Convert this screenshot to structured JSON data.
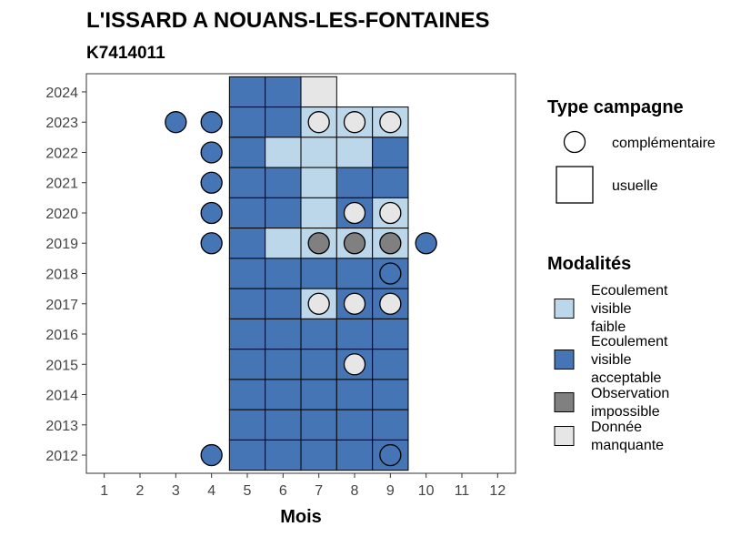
{
  "chart_data": {
    "type": "heatmap",
    "title": "L'ISSARD A NOUANS-LES-FONTAINES",
    "subtitle": "K7414011",
    "xlabel": "Mois",
    "ylabel": "",
    "x_ticks": [
      "1",
      "2",
      "3",
      "4",
      "5",
      "6",
      "7",
      "8",
      "9",
      "10",
      "11",
      "12"
    ],
    "y_ticks": [
      "2012",
      "2013",
      "2014",
      "2015",
      "2016",
      "2017",
      "2018",
      "2019",
      "2020",
      "2021",
      "2022",
      "2023",
      "2024"
    ],
    "xlim": [
      0.5,
      12.5
    ],
    "ylim": [
      2011.4,
      2024.6
    ],
    "grid": false,
    "colors": {
      "faible": "#bcd7e9",
      "acceptable": "#4575b4",
      "impossible": "#808080",
      "manquante": "#e6e6e6"
    },
    "usuelle": [
      {
        "year": 2024,
        "month": 5,
        "mod": "acceptable"
      },
      {
        "year": 2024,
        "month": 6,
        "mod": "acceptable"
      },
      {
        "year": 2024,
        "month": 7,
        "mod": "manquante"
      },
      {
        "year": 2023,
        "month": 5,
        "mod": "acceptable"
      },
      {
        "year": 2023,
        "month": 6,
        "mod": "acceptable"
      },
      {
        "year": 2023,
        "month": 7,
        "mod": "faible"
      },
      {
        "year": 2023,
        "month": 8,
        "mod": "faible"
      },
      {
        "year": 2023,
        "month": 9,
        "mod": "faible"
      },
      {
        "year": 2022,
        "month": 5,
        "mod": "acceptable"
      },
      {
        "year": 2022,
        "month": 6,
        "mod": "faible"
      },
      {
        "year": 2022,
        "month": 7,
        "mod": "faible"
      },
      {
        "year": 2022,
        "month": 8,
        "mod": "faible"
      },
      {
        "year": 2022,
        "month": 9,
        "mod": "acceptable"
      },
      {
        "year": 2021,
        "month": 5,
        "mod": "acceptable"
      },
      {
        "year": 2021,
        "month": 6,
        "mod": "acceptable"
      },
      {
        "year": 2021,
        "month": 7,
        "mod": "faible"
      },
      {
        "year": 2021,
        "month": 8,
        "mod": "acceptable"
      },
      {
        "year": 2021,
        "month": 9,
        "mod": "acceptable"
      },
      {
        "year": 2020,
        "month": 5,
        "mod": "acceptable"
      },
      {
        "year": 2020,
        "month": 6,
        "mod": "acceptable"
      },
      {
        "year": 2020,
        "month": 7,
        "mod": "faible"
      },
      {
        "year": 2020,
        "month": 8,
        "mod": "acceptable"
      },
      {
        "year": 2020,
        "month": 9,
        "mod": "faible"
      },
      {
        "year": 2019,
        "month": 5,
        "mod": "acceptable"
      },
      {
        "year": 2019,
        "month": 6,
        "mod": "faible"
      },
      {
        "year": 2019,
        "month": 7,
        "mod": "faible"
      },
      {
        "year": 2019,
        "month": 8,
        "mod": "faible"
      },
      {
        "year": 2019,
        "month": 9,
        "mod": "faible"
      },
      {
        "year": 2018,
        "month": 5,
        "mod": "acceptable"
      },
      {
        "year": 2018,
        "month": 6,
        "mod": "acceptable"
      },
      {
        "year": 2018,
        "month": 7,
        "mod": "acceptable"
      },
      {
        "year": 2018,
        "month": 8,
        "mod": "acceptable"
      },
      {
        "year": 2018,
        "month": 9,
        "mod": "acceptable"
      },
      {
        "year": 2017,
        "month": 5,
        "mod": "acceptable"
      },
      {
        "year": 2017,
        "month": 6,
        "mod": "acceptable"
      },
      {
        "year": 2017,
        "month": 7,
        "mod": "faible"
      },
      {
        "year": 2017,
        "month": 8,
        "mod": "acceptable"
      },
      {
        "year": 2017,
        "month": 9,
        "mod": "acceptable"
      },
      {
        "year": 2016,
        "month": 5,
        "mod": "acceptable"
      },
      {
        "year": 2016,
        "month": 6,
        "mod": "acceptable"
      },
      {
        "year": 2016,
        "month": 7,
        "mod": "acceptable"
      },
      {
        "year": 2016,
        "month": 8,
        "mod": "acceptable"
      },
      {
        "year": 2016,
        "month": 9,
        "mod": "acceptable"
      },
      {
        "year": 2015,
        "month": 5,
        "mod": "acceptable"
      },
      {
        "year": 2015,
        "month": 6,
        "mod": "acceptable"
      },
      {
        "year": 2015,
        "month": 7,
        "mod": "acceptable"
      },
      {
        "year": 2015,
        "month": 8,
        "mod": "acceptable"
      },
      {
        "year": 2015,
        "month": 9,
        "mod": "acceptable"
      },
      {
        "year": 2014,
        "month": 5,
        "mod": "acceptable"
      },
      {
        "year": 2014,
        "month": 6,
        "mod": "acceptable"
      },
      {
        "year": 2014,
        "month": 7,
        "mod": "acceptable"
      },
      {
        "year": 2014,
        "month": 8,
        "mod": "acceptable"
      },
      {
        "year": 2014,
        "month": 9,
        "mod": "acceptable"
      },
      {
        "year": 2013,
        "month": 5,
        "mod": "acceptable"
      },
      {
        "year": 2013,
        "month": 6,
        "mod": "acceptable"
      },
      {
        "year": 2013,
        "month": 7,
        "mod": "acceptable"
      },
      {
        "year": 2013,
        "month": 8,
        "mod": "acceptable"
      },
      {
        "year": 2013,
        "month": 9,
        "mod": "acceptable"
      },
      {
        "year": 2012,
        "month": 5,
        "mod": "acceptable"
      },
      {
        "year": 2012,
        "month": 6,
        "mod": "acceptable"
      },
      {
        "year": 2012,
        "month": 7,
        "mod": "acceptable"
      },
      {
        "year": 2012,
        "month": 8,
        "mod": "acceptable"
      },
      {
        "year": 2012,
        "month": 9,
        "mod": "acceptable"
      }
    ],
    "complementaire": [
      {
        "year": 2023,
        "month": 3,
        "mod": "acceptable"
      },
      {
        "year": 2023,
        "month": 4,
        "mod": "acceptable"
      },
      {
        "year": 2023,
        "month": 7,
        "mod": "manquante"
      },
      {
        "year": 2023,
        "month": 8,
        "mod": "manquante"
      },
      {
        "year": 2023,
        "month": 9,
        "mod": "manquante"
      },
      {
        "year": 2022,
        "month": 4,
        "mod": "acceptable"
      },
      {
        "year": 2021,
        "month": 4,
        "mod": "acceptable"
      },
      {
        "year": 2020,
        "month": 4,
        "mod": "acceptable"
      },
      {
        "year": 2020,
        "month": 8,
        "mod": "manquante"
      },
      {
        "year": 2020,
        "month": 9,
        "mod": "manquante"
      },
      {
        "year": 2019,
        "month": 4,
        "mod": "acceptable"
      },
      {
        "year": 2019,
        "month": 7,
        "mod": "impossible"
      },
      {
        "year": 2019,
        "month": 8,
        "mod": "impossible"
      },
      {
        "year": 2019,
        "month": 9,
        "mod": "impossible"
      },
      {
        "year": 2019,
        "month": 10,
        "mod": "acceptable"
      },
      {
        "year": 2018,
        "month": 9,
        "mod": "acceptable"
      },
      {
        "year": 2017,
        "month": 7,
        "mod": "manquante"
      },
      {
        "year": 2017,
        "month": 8,
        "mod": "manquante"
      },
      {
        "year": 2017,
        "month": 9,
        "mod": "manquante"
      },
      {
        "year": 2015,
        "month": 8,
        "mod": "manquante"
      },
      {
        "year": 2012,
        "month": 4,
        "mod": "acceptable"
      },
      {
        "year": 2012,
        "month": 9,
        "mod": "acceptable"
      }
    ],
    "legend_type": {
      "title": "Type campagne",
      "entries": [
        {
          "shape": "circle",
          "label": "complémentaire"
        },
        {
          "shape": "square",
          "label": "usuelle"
        }
      ]
    },
    "legend_modalites": {
      "title": "Modalités",
      "entries": [
        {
          "key": "faible",
          "lines": [
            "Ecoulement",
            "visible",
            "faible"
          ]
        },
        {
          "key": "acceptable",
          "lines": [
            "Ecoulement",
            "visible",
            "acceptable"
          ]
        },
        {
          "key": "impossible",
          "lines": [
            "Observation",
            "impossible"
          ]
        },
        {
          "key": "manquante",
          "lines": [
            "Donnée",
            "manquante"
          ]
        }
      ]
    },
    "legend_position": "right"
  }
}
